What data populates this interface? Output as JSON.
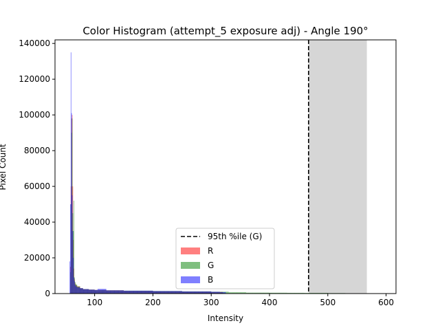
{
  "chart_data": {
    "type": "histogram",
    "title": "Color Histogram (attempt_5 exposure adj) - Angle 190°",
    "xlabel": "Intensity",
    "ylabel": "Pixel Count",
    "xlim": [
      32,
      617
    ],
    "ylim": [
      0,
      142000
    ],
    "xticks": [
      100,
      200,
      300,
      400,
      500,
      600
    ],
    "yticks": [
      0,
      20000,
      40000,
      60000,
      80000,
      100000,
      120000,
      140000
    ],
    "xtick_labels": [
      "100",
      "200",
      "300",
      "400",
      "500",
      "600"
    ],
    "ytick_labels": [
      "0",
      "20000",
      "40000",
      "60000",
      "80000",
      "100000",
      "120000",
      "140000"
    ],
    "vline": {
      "x": 467,
      "label": "95th %ile (G)",
      "style": "dashed",
      "color": "#000000"
    },
    "shaded_region": {
      "x0": 467,
      "x1": 567,
      "color": "#d6d6d6"
    },
    "legend": {
      "placement": "lower-center",
      "entries": [
        {
          "label": "95th %ile (G)",
          "kind": "line",
          "color": "#000000"
        },
        {
          "label": "R",
          "kind": "patch",
          "color": "#ff7f7f"
        },
        {
          "label": "G",
          "kind": "patch",
          "color": "#7fbf7f"
        },
        {
          "label": "B",
          "kind": "patch",
          "color": "#7f7fff"
        }
      ]
    },
    "series": [
      {
        "name": "R",
        "color": "#ff0000",
        "alpha": 0.5,
        "bins": [
          [
            58,
            15000
          ],
          [
            59,
            60000
          ],
          [
            60,
            98000
          ],
          [
            61,
            100000
          ],
          [
            62,
            60000
          ],
          [
            63,
            30000
          ],
          [
            64,
            14000
          ],
          [
            65,
            8000
          ],
          [
            66,
            6000
          ],
          [
            67,
            5000
          ],
          [
            68,
            4500
          ],
          [
            70,
            4000
          ],
          [
            75,
            3000
          ],
          [
            80,
            2500
          ],
          [
            90,
            2200
          ],
          [
            100,
            2000
          ],
          [
            120,
            1800
          ],
          [
            150,
            1500
          ],
          [
            200,
            1300
          ],
          [
            250,
            1100
          ],
          [
            300,
            900
          ],
          [
            320,
            300
          ]
        ]
      },
      {
        "name": "G",
        "color": "#008000",
        "alpha": 0.5,
        "bins": [
          [
            58,
            12000
          ],
          [
            59,
            50000
          ],
          [
            60,
            90000
          ],
          [
            61,
            98000
          ],
          [
            62,
            45000
          ],
          [
            63,
            35000
          ],
          [
            64,
            52000
          ],
          [
            65,
            9000
          ],
          [
            66,
            6500
          ],
          [
            67,
            5500
          ],
          [
            68,
            5000
          ],
          [
            70,
            4000
          ],
          [
            75,
            3000
          ],
          [
            80,
            2500
          ],
          [
            90,
            2200
          ],
          [
            100,
            2000
          ],
          [
            120,
            1800
          ],
          [
            150,
            1600
          ],
          [
            200,
            1400
          ],
          [
            250,
            1200
          ],
          [
            300,
            1000
          ],
          [
            330,
            700
          ],
          [
            360,
            500
          ],
          [
            400,
            450
          ],
          [
            430,
            400
          ],
          [
            460,
            350
          ],
          [
            500,
            250
          ],
          [
            530,
            150
          ]
        ]
      },
      {
        "name": "B",
        "color": "#0000ff",
        "alpha": 0.5,
        "bins": [
          [
            57,
            18000
          ],
          [
            58,
            50000
          ],
          [
            59,
            135000
          ],
          [
            60,
            101000
          ],
          [
            61,
            55000
          ],
          [
            62,
            35000
          ],
          [
            63,
            20000
          ],
          [
            64,
            9000
          ],
          [
            65,
            7000
          ],
          [
            66,
            5000
          ],
          [
            67,
            4500
          ],
          [
            68,
            4000
          ],
          [
            70,
            3500
          ],
          [
            75,
            3000
          ],
          [
            80,
            2500
          ],
          [
            90,
            2200
          ],
          [
            100,
            2000
          ],
          [
            105,
            2600
          ],
          [
            120,
            1800
          ],
          [
            150,
            1600
          ],
          [
            200,
            1400
          ],
          [
            250,
            1200
          ],
          [
            300,
            1000
          ],
          [
            315,
            800
          ],
          [
            325,
            200
          ]
        ]
      }
    ]
  }
}
